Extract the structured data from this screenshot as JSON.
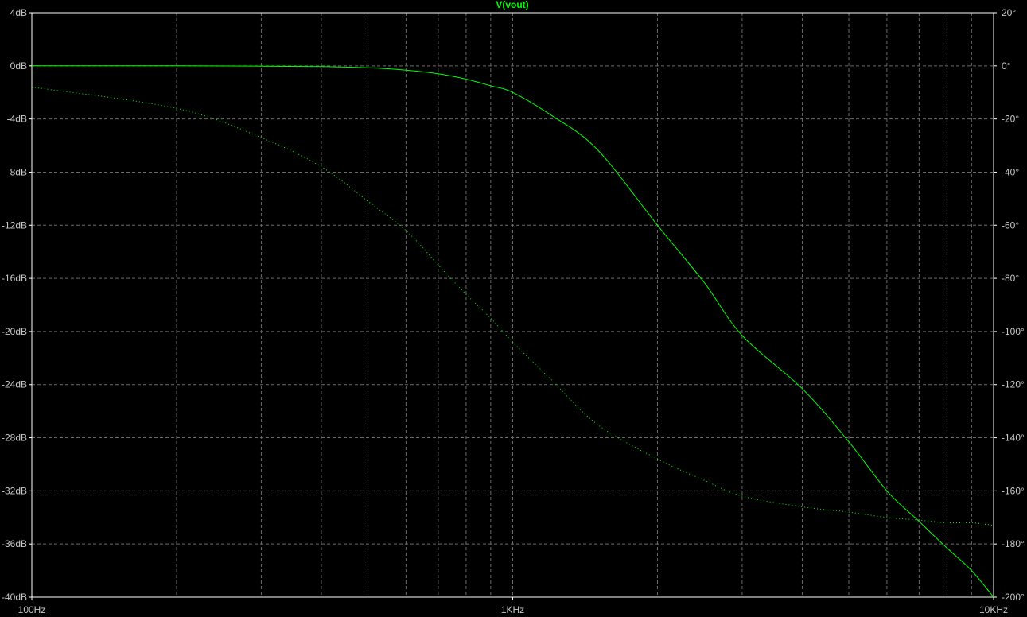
{
  "window": {
    "title": "V(vout)"
  },
  "colors": {
    "background": "#000000",
    "grid": "#6a6a6a",
    "trace": "#00ff00",
    "tick_text": "#c8c8c8"
  },
  "chart_data": {
    "type": "line",
    "title": "V(vout)",
    "x_scale": "log",
    "xlim": [
      100,
      10000
    ],
    "x_ticks": [
      {
        "value": 100,
        "label": "100Hz"
      },
      {
        "value": 1000,
        "label": "1KHz"
      },
      {
        "value": 10000,
        "label": "10KHz"
      }
    ],
    "y_left": {
      "unit": "dB",
      "lim": [
        -40,
        4
      ],
      "ticks": [
        {
          "value": 4,
          "label": "4dB"
        },
        {
          "value": 0,
          "label": "0dB"
        },
        {
          "value": -4,
          "label": "-4dB"
        },
        {
          "value": -8,
          "label": "-8dB"
        },
        {
          "value": -12,
          "label": "-12dB"
        },
        {
          "value": -16,
          "label": "-16dB"
        },
        {
          "value": -20,
          "label": "-20dB"
        },
        {
          "value": -24,
          "label": "-24dB"
        },
        {
          "value": -28,
          "label": "-28dB"
        },
        {
          "value": -32,
          "label": "-32dB"
        },
        {
          "value": -36,
          "label": "-36dB"
        },
        {
          "value": -40,
          "label": "-40dB"
        }
      ]
    },
    "y_right": {
      "unit": "°",
      "lim": [
        -200,
        20
      ],
      "ticks": [
        {
          "value": 20,
          "label": "20°"
        },
        {
          "value": 0,
          "label": "0°"
        },
        {
          "value": -20,
          "label": "-20°"
        },
        {
          "value": -40,
          "label": "-40°"
        },
        {
          "value": -60,
          "label": "-60°"
        },
        {
          "value": -80,
          "label": "-80°"
        },
        {
          "value": -100,
          "label": "-100°"
        },
        {
          "value": -120,
          "label": "-120°"
        },
        {
          "value": -140,
          "label": "-140°"
        },
        {
          "value": -160,
          "label": "-160°"
        },
        {
          "value": -180,
          "label": "-180°"
        },
        {
          "value": -200,
          "label": "-200°"
        }
      ]
    },
    "grid": true,
    "series": [
      {
        "axis": "left",
        "style": "solid",
        "x": [
          100,
          200,
          300,
          400,
          500,
          600,
          700,
          800,
          900,
          1000,
          1200,
          1500,
          2000,
          2500,
          3000,
          4000,
          5000,
          6000,
          7000,
          8000,
          9000,
          10000
        ],
        "values": [
          0.0,
          0.0,
          -0.02,
          -0.06,
          -0.15,
          -0.32,
          -0.6,
          -1.0,
          -1.5,
          -2.0,
          -3.7,
          -6.3,
          -12.0,
          -16.3,
          -20.3,
          -24.3,
          -28.3,
          -32.0,
          -34.3,
          -36.3,
          -38.0,
          -40.0
        ]
      },
      {
        "axis": "right",
        "style": "dotted",
        "x": [
          100,
          200,
          300,
          400,
          500,
          600,
          700,
          800,
          900,
          1000,
          1200,
          1500,
          2000,
          2500,
          3000,
          4000,
          5000,
          6000,
          7000,
          8000,
          9000,
          10000
        ],
        "values": [
          -8,
          -16,
          -27,
          -38,
          -51,
          -62,
          -75,
          -86,
          -95,
          -104,
          -118,
          -135,
          -148,
          -156,
          -162,
          -166,
          -168,
          -170,
          -171,
          -172,
          -172,
          -173
        ]
      }
    ]
  }
}
